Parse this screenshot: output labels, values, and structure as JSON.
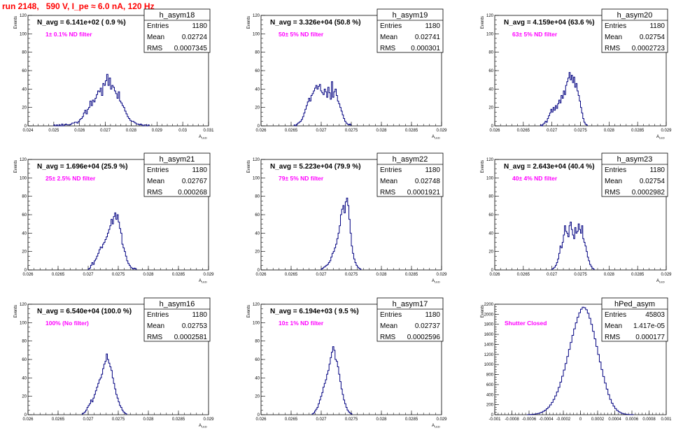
{
  "page": {
    "title": "run 2148,   590 V, I_pe ≈ 6.0 nA, 120 Hz"
  },
  "colors": {
    "title": "#ff0000",
    "histogram_line": "#000080",
    "filter_text": "#ff00ff",
    "axis": "#000000",
    "frame": "#000000"
  },
  "chart_data": [
    {
      "type": "bar",
      "name": "h_asym18",
      "navg": "N_avg = 6.141e+02 ( 0.9 %)",
      "note": "1± 0.1% ND filter",
      "stats": [
        [
          "Entries",
          "1180"
        ],
        [
          "Mean",
          "0.02724"
        ],
        [
          "RMS",
          "0.0007345"
        ]
      ],
      "xlim": [
        0.024,
        0.031
      ],
      "ylim": [
        0,
        120
      ],
      "xticks": [
        "0.024",
        "0.025",
        "0.026",
        "0.027",
        "0.028",
        "0.029",
        "0.03",
        "0.031"
      ],
      "yticks": [
        "0",
        "20",
        "40",
        "60",
        "80",
        "100",
        "120"
      ],
      "ylabel": "Events",
      "xlabel": "A",
      "bins": {
        "x0": 0.025,
        "width": 5e-05,
        "values": [
          1,
          0,
          1,
          0,
          1,
          0,
          2,
          0,
          1,
          2,
          1,
          1,
          1,
          2,
          3,
          3,
          4,
          4,
          3,
          5,
          7,
          8,
          10,
          14,
          17,
          13,
          18,
          20,
          27,
          22,
          28,
          26,
          30,
          34,
          38,
          37,
          41,
          33,
          46,
          44,
          49,
          56,
          44,
          52,
          40,
          44,
          42,
          38,
          35,
          30,
          37,
          27,
          25,
          22,
          20,
          16,
          13,
          10,
          8,
          6,
          5,
          5,
          4,
          3,
          2,
          2,
          1,
          2,
          1,
          0,
          1,
          1,
          0,
          1
        ]
      }
    },
    {
      "type": "bar",
      "name": "h_asym19",
      "navg": "N_avg = 3.326e+04 (50.8 %)",
      "note": "50± 5% ND filter",
      "stats": [
        [
          "Entries",
          "1180"
        ],
        [
          "Mean",
          "0.02741"
        ],
        [
          "RMS",
          "0.000301"
        ]
      ],
      "xlim": [
        0.026,
        0.029
      ],
      "ylim": [
        0,
        120
      ],
      "xticks": [
        "0.026",
        "0.0265",
        "0.027",
        "0.0275",
        "0.028",
        "0.0285",
        "0.029"
      ],
      "yticks": [
        "0",
        "20",
        "40",
        "60",
        "80",
        "100",
        "120"
      ],
      "ylabel": "Events",
      "xlabel": "A",
      "bins": {
        "x0": 0.02655,
        "width": 2e-05,
        "values": [
          1,
          0,
          2,
          3,
          4,
          5,
          7,
          10,
          14,
          18,
          22,
          26,
          30,
          27,
          33,
          35,
          38,
          41,
          44,
          40,
          43,
          45,
          38,
          36,
          34,
          40,
          37,
          31,
          42,
          36,
          29,
          48,
          31,
          37,
          40,
          33,
          27,
          24,
          20,
          16,
          12,
          8,
          5,
          3,
          2,
          1,
          2
        ]
      }
    },
    {
      "type": "bar",
      "name": "h_asym20",
      "navg": "N_avg = 4.159e+04 (63.6 %)",
      "note": "63± 5% ND filter",
      "stats": [
        [
          "Entries",
          "1180"
        ],
        [
          "Mean",
          "0.02754"
        ],
        [
          "RMS",
          "0.0002723"
        ]
      ],
      "xlim": [
        0.026,
        0.029
      ],
      "ylim": [
        0,
        120
      ],
      "xticks": [
        "0.026",
        "0.0265",
        "0.027",
        "0.0275",
        "0.028",
        "0.0285",
        "0.029"
      ],
      "yticks": [
        "0",
        "20",
        "40",
        "60",
        "80",
        "100",
        "120"
      ],
      "ylabel": "Events",
      "xlabel": "A",
      "bins": {
        "x0": 0.0268,
        "width": 2e-05,
        "values": [
          1,
          0,
          2,
          3,
          5,
          4,
          8,
          11,
          14,
          18,
          15,
          20,
          17,
          22,
          19,
          24,
          28,
          25,
          33,
          30,
          38,
          34,
          44,
          48,
          52,
          58,
          50,
          55,
          47,
          53,
          42,
          46,
          38,
          33,
          27,
          20,
          14,
          8,
          4,
          2,
          1
        ]
      }
    },
    {
      "type": "bar",
      "name": "h_asym21",
      "navg": "N_avg = 1.696e+04 (25.9 %)",
      "note": "25± 2.5% ND filter",
      "stats": [
        [
          "Entries",
          "1180"
        ],
        [
          "Mean",
          "0.02767"
        ],
        [
          "RMS",
          "0.000268"
        ]
      ],
      "xlim": [
        0.026,
        0.029
      ],
      "ylim": [
        0,
        120
      ],
      "xticks": [
        "0.026",
        "0.0265",
        "0.027",
        "0.0275",
        "0.028",
        "0.0285",
        "0.029"
      ],
      "yticks": [
        "0",
        "20",
        "40",
        "60",
        "80",
        "100",
        "120"
      ],
      "ylabel": "Events",
      "xlabel": "A",
      "bins": {
        "x0": 0.027,
        "width": 2e-05,
        "values": [
          1,
          2,
          5,
          8,
          6,
          10,
          12,
          15,
          18,
          22,
          25,
          24,
          28,
          30,
          33,
          36,
          40,
          44,
          48,
          55,
          50,
          58,
          62,
          55,
          60,
          52,
          45,
          40,
          28,
          24,
          20,
          15,
          10,
          7,
          5,
          3,
          2,
          1,
          2,
          1
        ]
      }
    },
    {
      "type": "bar",
      "name": "h_asym22",
      "navg": "N_avg = 5.223e+04 (79.9 %)",
      "note": "79± 5% ND filter",
      "stats": [
        [
          "Entries",
          "1180"
        ],
        [
          "Mean",
          "0.02748"
        ],
        [
          "RMS",
          "0.0001921"
        ]
      ],
      "xlim": [
        0.026,
        0.029
      ],
      "ylim": [
        0,
        120
      ],
      "xticks": [
        "0.026",
        "0.0265",
        "0.027",
        "0.0275",
        "0.028",
        "0.0285",
        "0.029"
      ],
      "yticks": [
        "0",
        "20",
        "40",
        "60",
        "80",
        "100",
        "120"
      ],
      "ylabel": "Events",
      "xlabel": "A",
      "bins": {
        "x0": 0.027,
        "width": 2e-05,
        "values": [
          1,
          2,
          3,
          4,
          5,
          6,
          8,
          10,
          14,
          18,
          20,
          24,
          28,
          34,
          40,
          48,
          60,
          66,
          70,
          62,
          74,
          78,
          70,
          55,
          40,
          26,
          18,
          12,
          8,
          5,
          3,
          2,
          1
        ]
      }
    },
    {
      "type": "bar",
      "name": "h_asym23",
      "navg": "N_avg = 2.643e+04 (40.4 %)",
      "note": "40± 4% ND filter",
      "stats": [
        [
          "Entries",
          "1180"
        ],
        [
          "Mean",
          "0.02754"
        ],
        [
          "RMS",
          "0.0002982"
        ]
      ],
      "xlim": [
        0.026,
        0.029
      ],
      "ylim": [
        0,
        120
      ],
      "xticks": [
        "0.026",
        "0.0265",
        "0.027",
        "0.0275",
        "0.028",
        "0.0285",
        "0.029"
      ],
      "yticks": [
        "0",
        "20",
        "40",
        "60",
        "80",
        "100",
        "120"
      ],
      "ylabel": "Events",
      "xlabel": "A",
      "bins": {
        "x0": 0.027,
        "width": 2e-05,
        "values": [
          1,
          2,
          3,
          5,
          8,
          12,
          18,
          26,
          24,
          30,
          38,
          48,
          42,
          40,
          36,
          48,
          52,
          44,
          38,
          34,
          46,
          40,
          42,
          50,
          44,
          40,
          48,
          34,
          30,
          26,
          20,
          14,
          10,
          6,
          4,
          2,
          1
        ]
      }
    },
    {
      "type": "bar",
      "name": "h_asym16",
      "navg": "N_avg = 6.540e+04 (100.0 %)",
      "note": "100% (No filter)",
      "stats": [
        [
          "Entries",
          "1180"
        ],
        [
          "Mean",
          "0.02753"
        ],
        [
          "RMS",
          "0.0002581"
        ]
      ],
      "xlim": [
        0.026,
        0.029
      ],
      "ylim": [
        0,
        120
      ],
      "xticks": [
        "0.026",
        "0.0265",
        "0.027",
        "0.0275",
        "0.028",
        "0.0285",
        "0.029"
      ],
      "yticks": [
        "0",
        "20",
        "40",
        "60",
        "80",
        "100",
        "120"
      ],
      "ylabel": "Events",
      "xlabel": "A",
      "bins": {
        "x0": 0.0269,
        "width": 2e-05,
        "values": [
          1,
          2,
          3,
          5,
          8,
          10,
          12,
          16,
          14,
          18,
          22,
          26,
          30,
          34,
          38,
          40,
          44,
          50,
          55,
          58,
          66,
          60,
          56,
          52,
          48,
          40,
          34,
          28,
          22,
          18,
          14,
          10,
          8,
          5,
          3,
          2,
          1
        ]
      }
    },
    {
      "type": "bar",
      "name": "h_asym17",
      "navg": "N_avg = 6.194e+03 ( 9.5 %)",
      "note": "10± 1% ND filter",
      "stats": [
        [
          "Entries",
          "1180"
        ],
        [
          "Mean",
          "0.02737"
        ],
        [
          "RMS",
          "0.0002596"
        ]
      ],
      "xlim": [
        0.026,
        0.029
      ],
      "ylim": [
        0,
        120
      ],
      "xticks": [
        "0.026",
        "0.0265",
        "0.027",
        "0.0275",
        "0.028",
        "0.0285",
        "0.029"
      ],
      "yticks": [
        "0",
        "20",
        "40",
        "60",
        "80",
        "100",
        "120"
      ],
      "ylabel": "Events",
      "xlabel": "A",
      "bins": {
        "x0": 0.02685,
        "width": 2e-05,
        "values": [
          1,
          2,
          4,
          6,
          8,
          12,
          16,
          20,
          24,
          30,
          34,
          38,
          44,
          48,
          55,
          62,
          68,
          74,
          70,
          60,
          58,
          52,
          44,
          36,
          28,
          22,
          16,
          12,
          8,
          5,
          3,
          2,
          1
        ]
      }
    },
    {
      "type": "bar",
      "name": "hPed_asym",
      "navg": "",
      "note": "Shutter Closed",
      "stats": [
        [
          "Entries",
          "45803"
        ],
        [
          "Mean",
          "1.417e-05"
        ],
        [
          "RMS",
          "0.000177"
        ]
      ],
      "xlim": [
        -0.001,
        0.001
      ],
      "ylim": [
        0,
        2200
      ],
      "xticks": [
        "-0.001",
        "-0.0008",
        "-0.0006",
        "-0.0004",
        "-0.0002",
        "0",
        "0.0002",
        "0.0004",
        "0.0006",
        "0.0008",
        "0.001"
      ],
      "yticks": [
        "0",
        "200",
        "400",
        "600",
        "800",
        "1000",
        "1200",
        "1400",
        "1600",
        "1800",
        "2000",
        "2200"
      ],
      "ylabel": "Events",
      "xlabel": "",
      "bins": {
        "x0": -0.00062,
        "width": 2e-05,
        "values": [
          2,
          3,
          5,
          8,
          12,
          18,
          26,
          36,
          50,
          68,
          90,
          118,
          152,
          195,
          245,
          305,
          375,
          455,
          545,
          650,
          765,
          890,
          1020,
          1160,
          1300,
          1440,
          1580,
          1710,
          1830,
          1940,
          2030,
          2100,
          2140,
          2130,
          2090,
          2020,
          1920,
          1800,
          1660,
          1510,
          1360,
          1200,
          1050,
          900,
          760,
          630,
          510,
          400,
          305,
          230,
          170,
          122,
          86,
          60,
          40,
          26,
          16,
          10,
          6,
          3,
          2,
          1
        ]
      }
    }
  ]
}
